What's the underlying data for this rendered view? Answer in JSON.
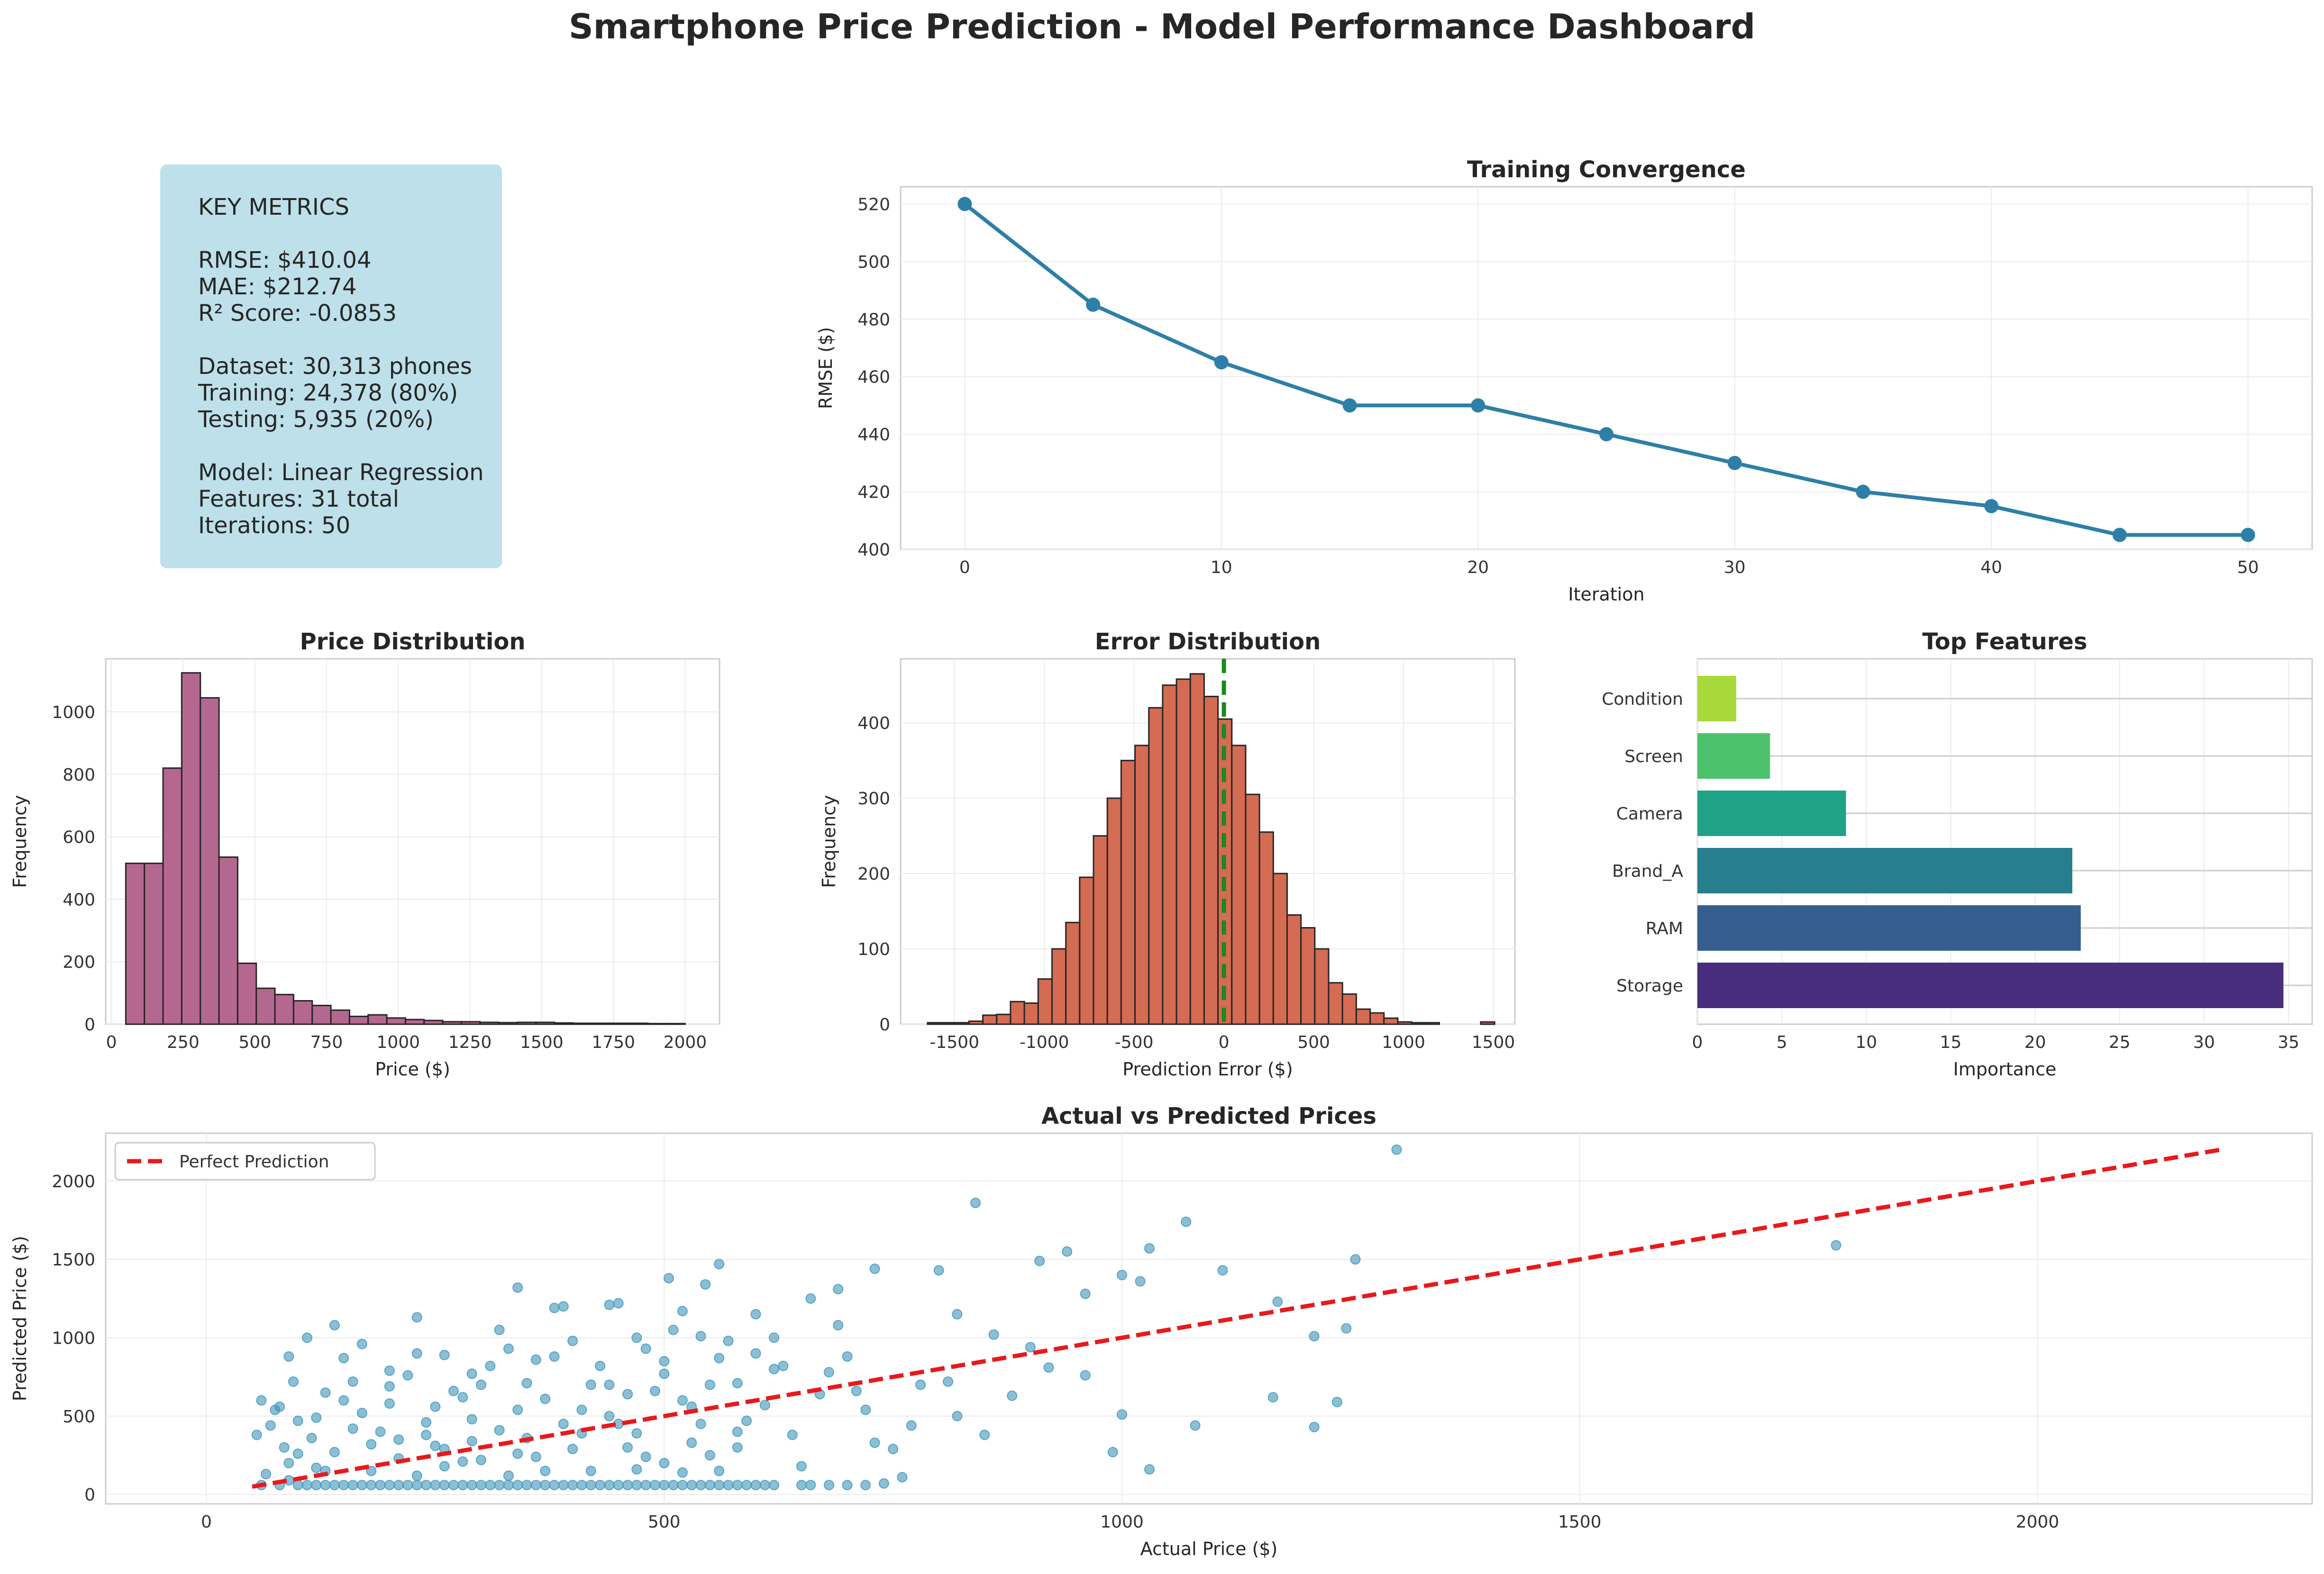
{
  "title": "Smartphone Price Prediction - Model Performance Dashboard",
  "metrics": {
    "lines": [
      "KEY METRICS",
      "",
      "RMSE: $410.04",
      "MAE: $212.74",
      "R² Score: -0.0853",
      "",
      "Dataset: 30,313 phones",
      "Training: 24,378 (80%)",
      "Testing: 5,935 (20%)",
      "",
      "Model: Linear Regression",
      "Features: 31 total",
      "Iterations: 50"
    ]
  },
  "colors": {
    "convergence": "#2e7fa8",
    "price_hist": "#b5688f",
    "error_hist": "#d46b53",
    "zero_line": "#1a8a1a",
    "scatter": "#3e95b9",
    "perfect_line": "#e8191c",
    "feature_bars": [
      "#a8d93a",
      "#4cc26c",
      "#20a287",
      "#277f8e",
      "#355e8e",
      "#472d7b"
    ]
  },
  "chart_data": [
    {
      "type": "line",
      "title": "Training Convergence",
      "xlabel": "Iteration",
      "ylabel": "RMSE ($)",
      "x": [
        0,
        5,
        10,
        15,
        20,
        25,
        30,
        35,
        40,
        45,
        50
      ],
      "y": [
        520,
        485,
        465,
        450,
        450,
        440,
        430,
        420,
        415,
        405,
        405
      ],
      "xlim": [
        -2.5,
        52.5
      ],
      "ylim": [
        400,
        526
      ],
      "xticks": [
        0,
        10,
        20,
        30,
        40,
        50
      ],
      "yticks": [
        400,
        420,
        440,
        460,
        480,
        500,
        520
      ],
      "grid": true
    },
    {
      "type": "bar",
      "subtype": "histogram",
      "title": "Price Distribution",
      "xlabel": "Price ($)",
      "ylabel": "Frequency",
      "bin_start": 50,
      "bin_width": 65,
      "counts": [
        515,
        515,
        820,
        1125,
        1045,
        535,
        195,
        115,
        95,
        75,
        60,
        45,
        25,
        30,
        20,
        15,
        12,
        8,
        8,
        6,
        5,
        6,
        6,
        4,
        3,
        3,
        3,
        3,
        2,
        2
      ],
      "xlim": [
        -20,
        2120
      ],
      "ylim": [
        0,
        1170
      ],
      "xticks": [
        0,
        250,
        500,
        750,
        1000,
        1250,
        1500,
        1750,
        2000
      ],
      "yticks": [
        0,
        200,
        400,
        600,
        800,
        1000
      ],
      "grid": true
    },
    {
      "type": "bar",
      "subtype": "histogram",
      "title": "Error Distribution",
      "xlabel": "Prediction Error ($)",
      "ylabel": "Frequency",
      "bin_start": -1650,
      "bin_width": 77,
      "counts": [
        2,
        2,
        2,
        4,
        12,
        13,
        30,
        28,
        60,
        100,
        135,
        195,
        250,
        300,
        350,
        370,
        420,
        450,
        458,
        465,
        435,
        405,
        370,
        305,
        255,
        200,
        145,
        128,
        100,
        55,
        40,
        20,
        15,
        8,
        3,
        2,
        2,
        0,
        0,
        0,
        3
      ],
      "xlim": [
        -1800,
        1620
      ],
      "ylim": [
        0,
        485
      ],
      "xticks": [
        -1500,
        -1000,
        -500,
        0,
        500,
        1000,
        1500
      ],
      "yticks": [
        0,
        100,
        200,
        300,
        400
      ],
      "zero_line": 0,
      "grid": true
    },
    {
      "type": "bar",
      "orientation": "horizontal",
      "title": "Top Features",
      "xlabel": "Importance",
      "ylabel": "",
      "categories": [
        "Condition",
        "Screen",
        "Camera",
        "Brand_A",
        "RAM",
        "Storage"
      ],
      "values": [
        2.3,
        4.3,
        8.8,
        22.2,
        22.7,
        34.7
      ],
      "xlim": [
        0,
        36.4
      ],
      "xticks": [
        0,
        5,
        10,
        15,
        20,
        25,
        30,
        35
      ],
      "grid": true
    },
    {
      "type": "scatter",
      "title": "Actual vs Predicted Prices",
      "xlabel": "Actual Price ($)",
      "ylabel": "Predicted Price ($)",
      "xlim": [
        -110,
        2300
      ],
      "ylim": [
        -60,
        2305
      ],
      "xticks": [
        0,
        500,
        1000,
        1500,
        2000
      ],
      "yticks": [
        0,
        500,
        1000,
        1500,
        2000
      ],
      "legend": {
        "entries": [
          "Perfect Prediction"
        ],
        "position": "top-left"
      },
      "perfect_line": {
        "x": [
          50,
          2200
        ],
        "y": [
          50,
          2200
        ]
      },
      "points": [
        [
          1300,
          2200
        ],
        [
          840,
          1860
        ],
        [
          1780,
          1590
        ],
        [
          1070,
          1740
        ],
        [
          1030,
          1570
        ],
        [
          1255,
          1500
        ],
        [
          940,
          1550
        ],
        [
          910,
          1490
        ],
        [
          1110,
          1430
        ],
        [
          560,
          1470
        ],
        [
          730,
          1440
        ],
        [
          800,
          1430
        ],
        [
          505,
          1380
        ],
        [
          340,
          1320
        ],
        [
          690,
          1310
        ],
        [
          545,
          1340
        ],
        [
          1000,
          1400
        ],
        [
          1170,
          1230
        ],
        [
          1245,
          1060
        ],
        [
          960,
          1280
        ],
        [
          820,
          1150
        ],
        [
          1020,
          1360
        ],
        [
          1210,
          1010
        ],
        [
          1165,
          620
        ],
        [
          1235,
          590
        ],
        [
          1210,
          430
        ],
        [
          1000,
          510
        ],
        [
          1080,
          440
        ],
        [
          990,
          270
        ],
        [
          1030,
          160
        ],
        [
          920,
          810
        ],
        [
          960,
          760
        ],
        [
          900,
          940
        ],
        [
          860,
          1020
        ],
        [
          880,
          630
        ],
        [
          820,
          500
        ],
        [
          850,
          380
        ],
        [
          810,
          720
        ],
        [
          770,
          440
        ],
        [
          740,
          70
        ],
        [
          760,
          110
        ],
        [
          700,
          880
        ],
        [
          720,
          540
        ],
        [
          660,
          1250
        ],
        [
          680,
          780
        ],
        [
          640,
          380
        ],
        [
          620,
          1000
        ],
        [
          600,
          900
        ],
        [
          580,
          710
        ],
        [
          560,
          870
        ],
        [
          540,
          450
        ],
        [
          520,
          1170
        ],
        [
          500,
          770
        ],
        [
          480,
          930
        ],
        [
          460,
          640
        ],
        [
          440,
          1210
        ],
        [
          420,
          700
        ],
        [
          400,
          980
        ],
        [
          380,
          1190
        ],
        [
          360,
          860
        ],
        [
          340,
          540
        ],
        [
          320,
          1050
        ],
        [
          300,
          700
        ],
        [
          280,
          620
        ],
        [
          260,
          890
        ],
        [
          240,
          460
        ],
        [
          220,
          760
        ],
        [
          200,
          580
        ],
        [
          180,
          320
        ],
        [
          160,
          720
        ],
        [
          140,
          1080
        ],
        [
          120,
          490
        ],
        [
          100,
          260
        ],
        [
          90,
          880
        ],
        [
          80,
          560
        ],
        [
          70,
          440
        ],
        [
          60,
          600
        ],
        [
          55,
          380
        ],
        [
          65,
          130
        ],
        [
          75,
          540
        ],
        [
          110,
          1000
        ],
        [
          130,
          650
        ],
        [
          150,
          870
        ],
        [
          170,
          960
        ],
        [
          190,
          400
        ],
        [
          210,
          230
        ],
        [
          230,
          1130
        ],
        [
          250,
          310
        ],
        [
          270,
          660
        ],
        [
          290,
          480
        ],
        [
          310,
          820
        ],
        [
          330,
          930
        ],
        [
          350,
          360
        ],
        [
          370,
          610
        ],
        [
          390,
          1200
        ],
        [
          410,
          540
        ],
        [
          430,
          820
        ],
        [
          450,
          1220
        ],
        [
          470,
          390
        ],
        [
          490,
          660
        ],
        [
          510,
          1050
        ],
        [
          530,
          560
        ],
        [
          550,
          250
        ],
        [
          570,
          980
        ],
        [
          590,
          470
        ],
        [
          610,
          570
        ],
        [
          630,
          820
        ],
        [
          650,
          180
        ],
        [
          670,
          640
        ],
        [
          690,
          1080
        ],
        [
          710,
          660
        ],
        [
          730,
          330
        ],
        [
          750,
          290
        ],
        [
          780,
          700
        ],
        [
          600,
          1150
        ],
        [
          620,
          800
        ],
        [
          460,
          300
        ],
        [
          300,
          220
        ],
        [
          120,
          170
        ],
        [
          90,
          90
        ],
        [
          560,
          150
        ],
        [
          580,
          400
        ],
        [
          540,
          1010
        ],
        [
          520,
          600
        ],
        [
          500,
          850
        ],
        [
          470,
          1000
        ],
        [
          440,
          700
        ],
        [
          410,
          390
        ],
        [
          380,
          880
        ],
        [
          350,
          710
        ],
        [
          320,
          410
        ],
        [
          290,
          770
        ],
        [
          260,
          290
        ],
        [
          230,
          900
        ],
        [
          200,
          690
        ],
        [
          170,
          520
        ],
        [
          140,
          270
        ],
        [
          115,
          360
        ],
        [
          95,
          720
        ],
        [
          85,
          300
        ],
        [
          60,
          60
        ],
        [
          80,
          60
        ],
        [
          100,
          60
        ],
        [
          120,
          60
        ],
        [
          140,
          60
        ],
        [
          160,
          60
        ],
        [
          180,
          60
        ],
        [
          200,
          60
        ],
        [
          220,
          60
        ],
        [
          240,
          60
        ],
        [
          260,
          60
        ],
        [
          280,
          60
        ],
        [
          300,
          60
        ],
        [
          320,
          60
        ],
        [
          340,
          60
        ],
        [
          360,
          60
        ],
        [
          380,
          60
        ],
        [
          400,
          60
        ],
        [
          420,
          60
        ],
        [
          440,
          60
        ],
        [
          460,
          60
        ],
        [
          480,
          60
        ],
        [
          500,
          60
        ],
        [
          520,
          60
        ],
        [
          540,
          60
        ],
        [
          560,
          60
        ],
        [
          580,
          60
        ],
        [
          600,
          60
        ],
        [
          620,
          60
        ],
        [
          660,
          60
        ],
        [
          700,
          60
        ],
        [
          110,
          60
        ],
        [
          150,
          60
        ],
        [
          190,
          60
        ],
        [
          230,
          60
        ],
        [
          270,
          60
        ],
        [
          310,
          60
        ],
        [
          350,
          60
        ],
        [
          390,
          60
        ],
        [
          430,
          60
        ],
        [
          470,
          60
        ],
        [
          510,
          60
        ],
        [
          550,
          60
        ],
        [
          590,
          60
        ],
        [
          130,
          60
        ],
        [
          170,
          60
        ],
        [
          210,
          60
        ],
        [
          250,
          60
        ],
        [
          290,
          60
        ],
        [
          330,
          60
        ],
        [
          370,
          60
        ],
        [
          410,
          60
        ],
        [
          450,
          60
        ],
        [
          490,
          60
        ],
        [
          530,
          60
        ],
        [
          570,
          60
        ],
        [
          610,
          60
        ],
        [
          650,
          60
        ],
        [
          680,
          60
        ],
        [
          720,
          60
        ],
        [
          90,
          200
        ],
        [
          130,
          150
        ],
        [
          180,
          150
        ],
        [
          230,
          120
        ],
        [
          260,
          180
        ],
        [
          330,
          120
        ],
        [
          370,
          150
        ],
        [
          420,
          150
        ],
        [
          470,
          160
        ],
        [
          520,
          140
        ],
        [
          160,
          420
        ],
        [
          210,
          350
        ],
        [
          250,
          560
        ],
        [
          290,
          340
        ],
        [
          340,
          260
        ],
        [
          390,
          450
        ],
        [
          440,
          500
        ],
        [
          480,
          240
        ],
        [
          530,
          330
        ],
        [
          580,
          300
        ],
        [
          100,
          470
        ],
        [
          150,
          600
        ],
        [
          200,
          790
        ],
        [
          240,
          380
        ],
        [
          280,
          210
        ],
        [
          360,
          240
        ],
        [
          400,
          290
        ],
        [
          450,
          450
        ],
        [
          500,
          200
        ],
        [
          550,
          700
        ]
      ],
      "grid": true
    }
  ]
}
